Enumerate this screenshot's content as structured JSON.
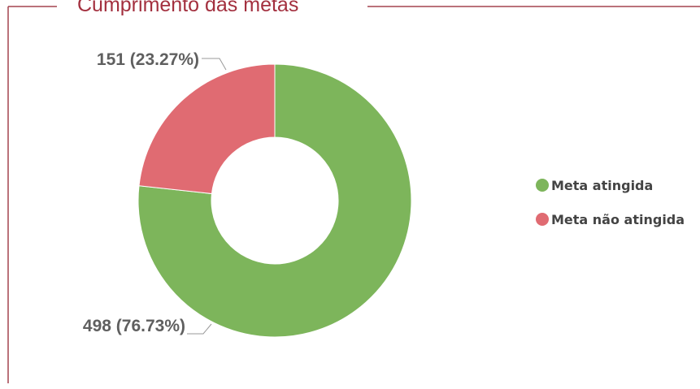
{
  "chart_data": {
    "type": "pie",
    "donut": true,
    "title": "Cumprimento das metas",
    "categories": [
      "Meta atingida",
      "Meta não atingida"
    ],
    "values": [
      498,
      151
    ],
    "value_labels": [
      "498 (76.73%)",
      "151 (23.27%)"
    ],
    "colors": [
      "#7db55b",
      "#e06b72"
    ],
    "legend": "right"
  }
}
